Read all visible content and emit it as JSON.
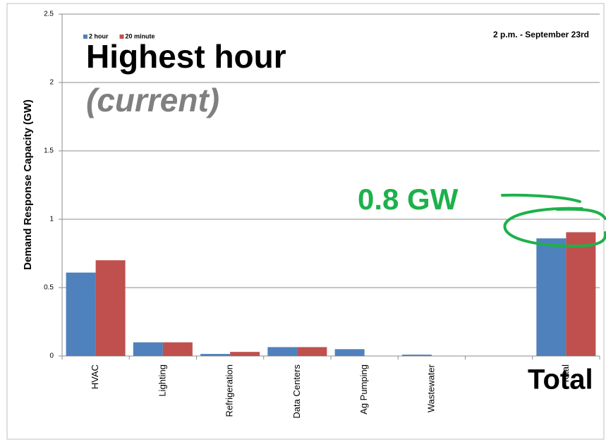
{
  "chart_data": {
    "type": "bar",
    "y_label": "Demand Response Capacity (GW)",
    "categories": [
      "HVAC",
      "Lighting",
      "Refrigeration",
      "Data Centers",
      "Ag Pumping",
      "Wastewater",
      null,
      "Total"
    ],
    "series": [
      {
        "name": "2 hour",
        "color": "#4f81bd",
        "values": [
          0.61,
          0.1,
          0.015,
          0.065,
          0.05,
          0.01,
          null,
          0.86
        ]
      },
      {
        "name": "20 minute",
        "color": "#c0504d",
        "values": [
          0.7,
          0.1,
          0.03,
          0.065,
          0,
          0,
          null,
          0.905
        ]
      }
    ],
    "ylim": [
      0,
      2.5
    ],
    "yticks": [
      0,
      0.5,
      1,
      1.5,
      2,
      2.5
    ],
    "grid": true,
    "legend": "top-left",
    "annotations": [
      "Highest hour",
      "(current)",
      "2 p.m. - September 23rd",
      "0.8 GW",
      "Total"
    ]
  }
}
